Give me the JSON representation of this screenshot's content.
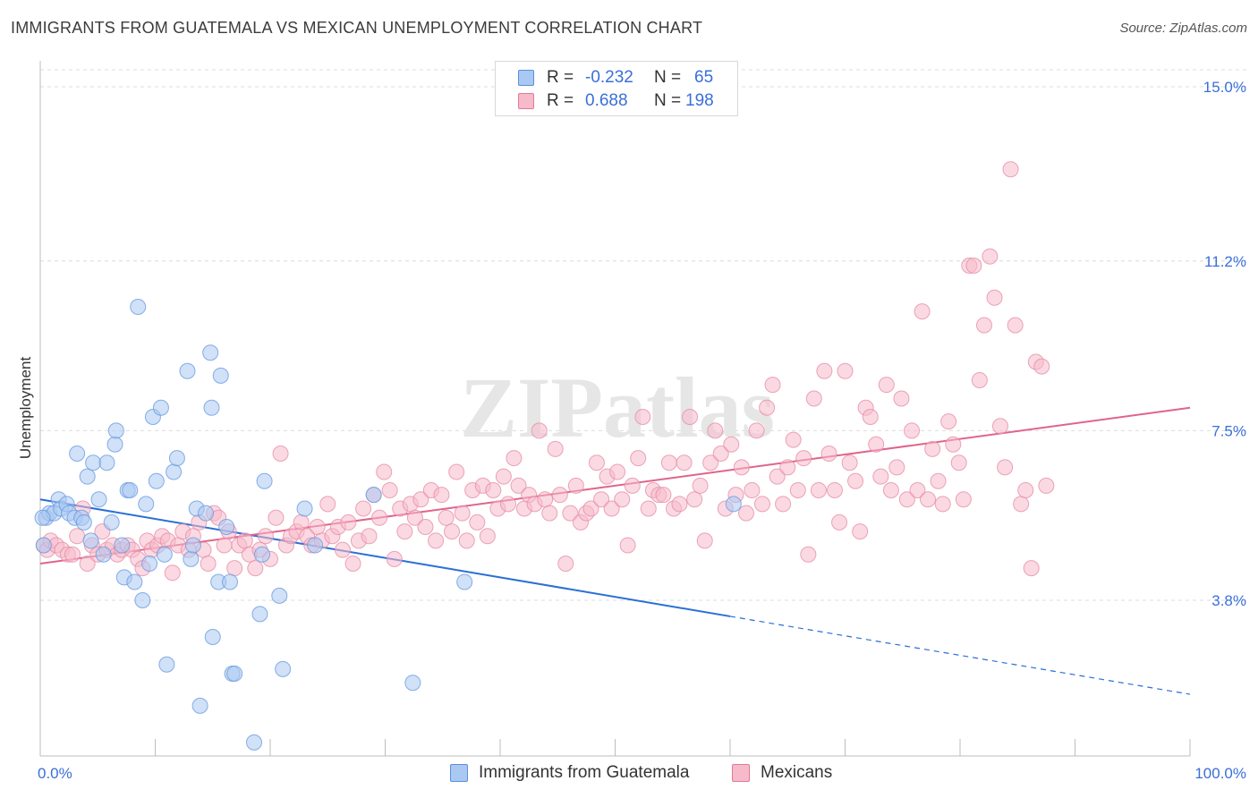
{
  "chart_data": {
    "type": "scatter",
    "title": "IMMIGRANTS FROM GUATEMALA VS MEXICAN UNEMPLOYMENT CORRELATION CHART",
    "source": "Source: ZipAtlas.com",
    "xlabel": "",
    "ylabel": "Unemployment",
    "xlim": [
      0,
      100
    ],
    "ylim": [
      0.5,
      15.5
    ],
    "x_tick_labels": [
      "0.0%",
      "100.0%"
    ],
    "y_ticks": [
      3.8,
      7.5,
      11.2,
      15.0
    ],
    "y_tick_labels": [
      "3.8%",
      "7.5%",
      "11.2%",
      "15.0%"
    ],
    "watermark": "ZIPatlas",
    "legend": {
      "r_label": "R =",
      "n_label": "N =",
      "entries": [
        {
          "name": "Immigrants from Guatemala",
          "r": "-0.232",
          "n": "65",
          "color": "#a9c8f2",
          "stroke": "#5b8fdb"
        },
        {
          "name": "Mexicans",
          "r": "0.688",
          "n": "198",
          "color": "#f7bacb",
          "stroke": "#e07a9a"
        }
      ]
    },
    "series": [
      {
        "name": "Immigrants from Guatemala",
        "color": "#a9c8f2",
        "stroke": "#6a9be0",
        "trend": {
          "x0": 0,
          "y0": 6.0,
          "x1": 60,
          "y1": 3.45,
          "x_dash_end": 100,
          "y_dash_end": 1.75,
          "color": "#2a6fd6"
        },
        "points": [
          [
            0.3,
            5.0
          ],
          [
            0.5,
            5.6
          ],
          [
            0.8,
            5.7
          ],
          [
            1.2,
            5.7
          ],
          [
            1.6,
            6.0
          ],
          [
            1.8,
            5.8
          ],
          [
            2.3,
            5.9
          ],
          [
            2.5,
            5.7
          ],
          [
            3.0,
            5.6
          ],
          [
            3.2,
            7.0
          ],
          [
            3.6,
            5.6
          ],
          [
            3.8,
            5.5
          ],
          [
            4.1,
            6.5
          ],
          [
            4.4,
            5.1
          ],
          [
            4.6,
            6.8
          ],
          [
            5.1,
            6.0
          ],
          [
            5.5,
            4.8
          ],
          [
            5.8,
            6.8
          ],
          [
            6.2,
            5.5
          ],
          [
            6.5,
            7.2
          ],
          [
            6.6,
            7.5
          ],
          [
            7.1,
            5.0
          ],
          [
            7.3,
            4.3
          ],
          [
            7.6,
            6.2
          ],
          [
            7.8,
            6.2
          ],
          [
            8.2,
            4.2
          ],
          [
            8.5,
            10.2
          ],
          [
            8.9,
            3.8
          ],
          [
            9.2,
            5.9
          ],
          [
            9.5,
            4.6
          ],
          [
            9.8,
            7.8
          ],
          [
            10.1,
            6.4
          ],
          [
            10.5,
            8.0
          ],
          [
            10.8,
            4.8
          ],
          [
            11.0,
            2.4
          ],
          [
            11.6,
            6.6
          ],
          [
            11.9,
            6.9
          ],
          [
            12.8,
            8.8
          ],
          [
            13.1,
            4.7
          ],
          [
            13.3,
            5.0
          ],
          [
            13.6,
            5.8
          ],
          [
            13.9,
            1.5
          ],
          [
            14.4,
            5.7
          ],
          [
            14.8,
            9.2
          ],
          [
            14.9,
            8.0
          ],
          [
            15.0,
            3.0
          ],
          [
            15.5,
            4.2
          ],
          [
            15.7,
            8.7
          ],
          [
            16.2,
            5.4
          ],
          [
            16.5,
            4.2
          ],
          [
            16.7,
            2.2
          ],
          [
            16.9,
            2.2
          ],
          [
            18.6,
            0.7
          ],
          [
            19.1,
            3.5
          ],
          [
            19.3,
            4.8
          ],
          [
            19.5,
            6.4
          ],
          [
            20.8,
            3.9
          ],
          [
            21.1,
            2.3
          ],
          [
            23.0,
            5.8
          ],
          [
            23.9,
            5.0
          ],
          [
            29.0,
            6.1
          ],
          [
            32.4,
            2.0
          ],
          [
            36.9,
            4.2
          ],
          [
            60.3,
            5.9
          ],
          [
            0.2,
            5.6
          ]
        ]
      },
      {
        "name": "Mexicans",
        "color": "#f7bacb",
        "stroke": "#e58fa9",
        "trend": {
          "x0": 0,
          "y0": 4.6,
          "x1": 100,
          "y1": 8.0,
          "color": "#e0648c"
        },
        "points": [
          [
            0.3,
            5.0
          ],
          [
            0.6,
            4.9
          ],
          [
            0.9,
            5.1
          ],
          [
            1.4,
            5.0
          ],
          [
            1.9,
            4.9
          ],
          [
            2.4,
            4.8
          ],
          [
            2.8,
            4.8
          ],
          [
            3.2,
            5.2
          ],
          [
            3.7,
            5.8
          ],
          [
            4.1,
            4.6
          ],
          [
            4.5,
            5.0
          ],
          [
            5.0,
            4.8
          ],
          [
            5.4,
            5.3
          ],
          [
            5.8,
            4.9
          ],
          [
            6.3,
            5.0
          ],
          [
            6.7,
            4.8
          ],
          [
            7.1,
            4.9
          ],
          [
            7.6,
            5.0
          ],
          [
            8.0,
            4.9
          ],
          [
            8.5,
            4.7
          ],
          [
            8.9,
            4.5
          ],
          [
            9.3,
            5.1
          ],
          [
            9.7,
            4.9
          ],
          [
            10.2,
            5.0
          ],
          [
            10.6,
            5.2
          ],
          [
            11.1,
            5.1
          ],
          [
            11.5,
            4.4
          ],
          [
            12.0,
            5.0
          ],
          [
            12.4,
            5.3
          ],
          [
            12.9,
            4.9
          ],
          [
            13.3,
            5.2
          ],
          [
            13.8,
            5.5
          ],
          [
            14.2,
            4.9
          ],
          [
            14.6,
            4.6
          ],
          [
            15.1,
            5.7
          ],
          [
            15.5,
            5.6
          ],
          [
            16.0,
            5.0
          ],
          [
            16.4,
            5.3
          ],
          [
            16.9,
            4.5
          ],
          [
            17.3,
            5.0
          ],
          [
            17.8,
            5.1
          ],
          [
            18.2,
            4.8
          ],
          [
            18.7,
            4.5
          ],
          [
            19.1,
            4.9
          ],
          [
            19.6,
            5.2
          ],
          [
            20.0,
            4.7
          ],
          [
            20.5,
            5.6
          ],
          [
            20.9,
            7.0
          ],
          [
            21.4,
            5.0
          ],
          [
            21.8,
            5.2
          ],
          [
            22.3,
            5.3
          ],
          [
            22.7,
            5.5
          ],
          [
            23.2,
            5.2
          ],
          [
            23.6,
            5.0
          ],
          [
            24.1,
            5.4
          ],
          [
            24.5,
            5.1
          ],
          [
            25.0,
            5.9
          ],
          [
            25.4,
            5.2
          ],
          [
            25.9,
            5.4
          ],
          [
            26.3,
            4.9
          ],
          [
            26.8,
            5.5
          ],
          [
            27.2,
            4.6
          ],
          [
            27.7,
            5.1
          ],
          [
            28.1,
            5.8
          ],
          [
            28.6,
            5.2
          ],
          [
            29.0,
            6.1
          ],
          [
            29.5,
            5.6
          ],
          [
            29.9,
            6.6
          ],
          [
            30.4,
            6.2
          ],
          [
            30.8,
            4.7
          ],
          [
            31.3,
            5.8
          ],
          [
            31.7,
            5.3
          ],
          [
            32.2,
            5.9
          ],
          [
            32.6,
            5.6
          ],
          [
            33.1,
            6.0
          ],
          [
            33.5,
            5.4
          ],
          [
            34.0,
            6.2
          ],
          [
            34.4,
            5.1
          ],
          [
            34.9,
            6.1
          ],
          [
            35.3,
            5.6
          ],
          [
            35.8,
            5.3
          ],
          [
            36.2,
            6.6
          ],
          [
            36.7,
            5.7
          ],
          [
            37.1,
            5.1
          ],
          [
            37.6,
            6.2
          ],
          [
            38.0,
            5.5
          ],
          [
            38.5,
            6.3
          ],
          [
            38.9,
            5.2
          ],
          [
            39.4,
            6.2
          ],
          [
            39.8,
            5.8
          ],
          [
            40.3,
            6.5
          ],
          [
            40.7,
            5.9
          ],
          [
            41.2,
            6.9
          ],
          [
            41.6,
            6.3
          ],
          [
            42.1,
            5.8
          ],
          [
            42.5,
            6.1
          ],
          [
            43.0,
            5.9
          ],
          [
            43.4,
            7.5
          ],
          [
            43.9,
            6.0
          ],
          [
            44.3,
            5.7
          ],
          [
            44.8,
            7.1
          ],
          [
            45.2,
            6.1
          ],
          [
            45.7,
            4.6
          ],
          [
            46.1,
            5.7
          ],
          [
            46.6,
            6.3
          ],
          [
            47.0,
            5.5
          ],
          [
            47.5,
            5.7
          ],
          [
            47.9,
            5.8
          ],
          [
            48.4,
            6.8
          ],
          [
            48.8,
            6.0
          ],
          [
            49.3,
            6.5
          ],
          [
            49.7,
            5.8
          ],
          [
            50.2,
            6.6
          ],
          [
            50.6,
            6.0
          ],
          [
            51.1,
            5.0
          ],
          [
            51.5,
            6.3
          ],
          [
            52.0,
            6.9
          ],
          [
            52.4,
            7.8
          ],
          [
            52.9,
            5.8
          ],
          [
            53.3,
            6.2
          ],
          [
            53.8,
            6.1
          ],
          [
            54.2,
            6.1
          ],
          [
            54.7,
            6.8
          ],
          [
            55.1,
            5.8
          ],
          [
            55.6,
            5.9
          ],
          [
            56.0,
            6.8
          ],
          [
            56.5,
            7.8
          ],
          [
            56.9,
            6.0
          ],
          [
            57.4,
            6.3
          ],
          [
            57.8,
            5.1
          ],
          [
            58.3,
            6.8
          ],
          [
            58.7,
            7.5
          ],
          [
            59.2,
            7.0
          ],
          [
            59.6,
            5.8
          ],
          [
            60.1,
            7.2
          ],
          [
            60.5,
            6.1
          ],
          [
            61.0,
            6.7
          ],
          [
            61.4,
            5.7
          ],
          [
            61.9,
            6.2
          ],
          [
            62.3,
            7.5
          ],
          [
            62.8,
            5.9
          ],
          [
            63.2,
            8.0
          ],
          [
            63.7,
            8.5
          ],
          [
            64.1,
            6.5
          ],
          [
            64.6,
            5.9
          ],
          [
            65.0,
            6.7
          ],
          [
            65.5,
            7.3
          ],
          [
            65.9,
            6.2
          ],
          [
            66.4,
            6.9
          ],
          [
            66.8,
            4.8
          ],
          [
            67.3,
            8.2
          ],
          [
            67.7,
            6.2
          ],
          [
            68.2,
            8.8
          ],
          [
            68.6,
            7.0
          ],
          [
            69.1,
            6.2
          ],
          [
            69.5,
            5.5
          ],
          [
            70.0,
            8.8
          ],
          [
            70.4,
            6.8
          ],
          [
            70.9,
            6.4
          ],
          [
            71.3,
            5.3
          ],
          [
            71.8,
            8.0
          ],
          [
            72.2,
            7.8
          ],
          [
            72.7,
            7.2
          ],
          [
            73.1,
            6.5
          ],
          [
            73.6,
            8.5
          ],
          [
            74.0,
            6.2
          ],
          [
            74.5,
            6.7
          ],
          [
            74.9,
            8.2
          ],
          [
            75.4,
            6.0
          ],
          [
            75.8,
            7.5
          ],
          [
            76.3,
            6.2
          ],
          [
            76.7,
            10.1
          ],
          [
            77.2,
            6.0
          ],
          [
            77.6,
            7.1
          ],
          [
            78.1,
            6.4
          ],
          [
            78.5,
            5.9
          ],
          [
            79.0,
            7.7
          ],
          [
            79.4,
            7.2
          ],
          [
            79.9,
            6.8
          ],
          [
            80.3,
            6.0
          ],
          [
            80.8,
            11.1
          ],
          [
            81.2,
            11.1
          ],
          [
            81.7,
            8.6
          ],
          [
            82.1,
            9.8
          ],
          [
            82.6,
            11.3
          ],
          [
            83.0,
            10.4
          ],
          [
            83.5,
            7.6
          ],
          [
            83.9,
            6.7
          ],
          [
            84.4,
            13.2
          ],
          [
            84.8,
            9.8
          ],
          [
            85.3,
            5.9
          ],
          [
            85.7,
            6.2
          ],
          [
            86.2,
            4.5
          ],
          [
            86.6,
            9.0
          ],
          [
            87.1,
            8.9
          ],
          [
            87.5,
            6.3
          ]
        ]
      }
    ]
  }
}
